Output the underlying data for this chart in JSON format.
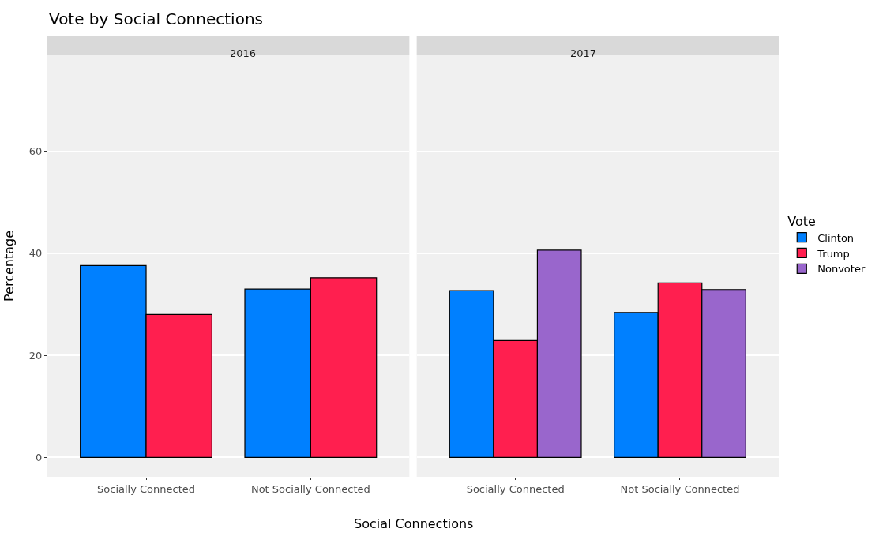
{
  "chart_data": [
    {
      "type": "bar",
      "title": "Vote by Social Connections",
      "subtitle": "2016",
      "xlabel": "Social Connections",
      "ylabel": "Percentage",
      "categories": [
        "Socially Connected",
        "Not Socially Connected"
      ],
      "series": [
        {
          "name": "Clinton",
          "color": "#0080ff",
          "values": [
            37.6,
            33.0
          ]
        },
        {
          "name": "Trump",
          "color": "#ff1f4f",
          "values": [
            28.0,
            35.2
          ]
        }
      ],
      "ylim": [
        -3.8,
        78.8
      ],
      "yticks": [
        0,
        20,
        40,
        60
      ],
      "grid": "y",
      "legend": "right"
    },
    {
      "type": "bar",
      "subtitle": "2017",
      "categories": [
        "Socially Connected",
        "Not Socially Connected"
      ],
      "series": [
        {
          "name": "Clinton",
          "color": "#0080ff",
          "values": [
            32.7,
            28.4
          ]
        },
        {
          "name": "Trump",
          "color": "#ff1f4f",
          "values": [
            22.9,
            34.2
          ]
        },
        {
          "name": "Nonvoter",
          "color": "#9966cc",
          "values": [
            40.6,
            32.9
          ]
        }
      ],
      "ylim": [
        -3.8,
        78.8
      ],
      "yticks": [
        0,
        20,
        40,
        60
      ],
      "grid": "y",
      "legend": "right",
      "legend_title": "Vote",
      "tick_labels": "x"
    }
  ]
}
